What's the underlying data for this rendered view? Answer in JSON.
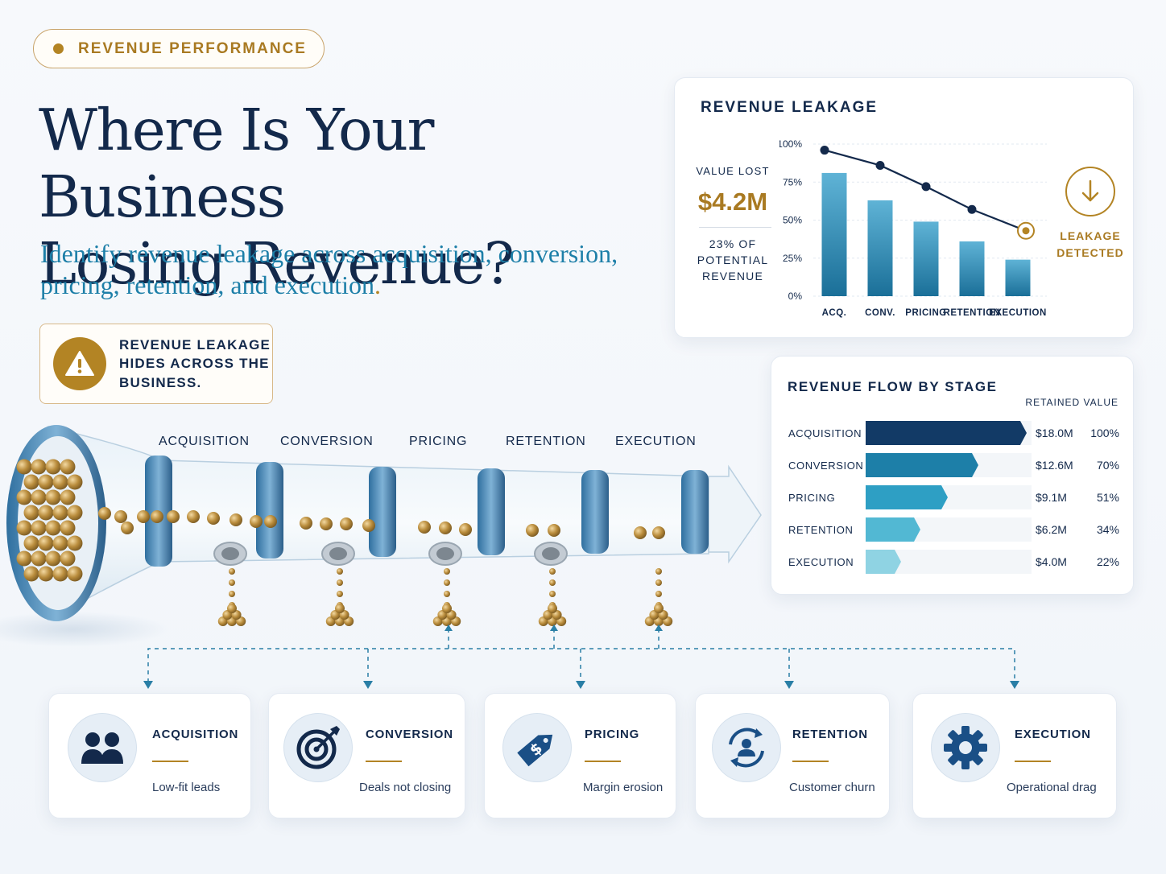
{
  "badge": {
    "label": "REVENUE PERFORMANCE"
  },
  "headline": {
    "line1": "Where Is Your Business",
    "line2": "Losing Revenue?"
  },
  "subtitle": {
    "text": "Identify revenue leakage across acquisition, conversion, pricing, retention, and execution",
    "period": "."
  },
  "warning": {
    "icon": "warning-triangle-icon",
    "text": "REVENUE LEAKAGE HIDES ACROSS THE BUSINESS."
  },
  "colors": {
    "navy": "#13294b",
    "gold": "#b38424",
    "teal": "#1d7fa8"
  },
  "pipeline": {
    "stages": [
      "ACQUISITION",
      "CONVERSION",
      "PRICING",
      "RETENTION",
      "EXECUTION"
    ]
  },
  "leakage_card": {
    "title": "REVENUE LEAKAGE",
    "value_lost_label": "VALUE LOST",
    "value_lost": "$4.2M",
    "potential_note": "23% OF POTENTIAL REVENUE",
    "detected_label": "LEAKAGE DETECTED",
    "detected_icon": "arrow-down-icon"
  },
  "flow_card": {
    "title": "REVENUE FLOW BY STAGE",
    "column_label": "RETAINED VALUE"
  },
  "chart_data": [
    {
      "type": "bar",
      "title": "REVENUE LEAKAGE",
      "categories": [
        "ACQ.",
        "CONV.",
        "PRICING",
        "RETENTION",
        "EXECUTION"
      ],
      "series": [
        {
          "values": [
            81,
            63,
            49,
            36,
            24
          ]
        },
        {
          "values": [
            96,
            86,
            72,
            57,
            43
          ]
        }
      ],
      "ylim": [
        0,
        100
      ],
      "yticks": [
        "0%",
        "25%",
        "50%",
        "75%",
        "100%"
      ],
      "grid": true
    },
    {
      "type": "bar",
      "title": "REVENUE FLOW BY STAGE",
      "categories": [
        "ACQUISITION",
        "CONVERSION",
        "PRICING",
        "RETENTION",
        "EXECUTION"
      ],
      "values": [
        18.0,
        12.6,
        9.1,
        6.2,
        4.0
      ],
      "value_labels": [
        "$18.0M",
        "$12.6M",
        "$9.1M",
        "$6.2M",
        "$4.0M"
      ],
      "percent_labels": [
        "100%",
        "70%",
        "51%",
        "34%",
        "22%"
      ],
      "percents": [
        100,
        70,
        51,
        34,
        22
      ],
      "colors": [
        "#123a66",
        "#1d7fa8",
        "#2e9fc4",
        "#52b8d3",
        "#8fd3e3"
      ]
    }
  ],
  "leak_cards": [
    {
      "name": "ACQUISITION",
      "desc": "Low-fit leads",
      "icon": "people-icon"
    },
    {
      "name": "CONVERSION",
      "desc": "Deals not closing",
      "icon": "target-icon"
    },
    {
      "name": "PRICING",
      "desc": "Margin erosion",
      "icon": "price-tag-icon"
    },
    {
      "name": "RETENTION",
      "desc": "Customer churn",
      "icon": "churn-cycle-icon"
    },
    {
      "name": "EXECUTION",
      "desc": "Operational drag",
      "icon": "gear-icon"
    }
  ]
}
